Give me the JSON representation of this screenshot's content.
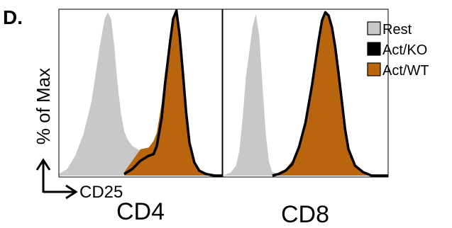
{
  "figure": {
    "panel_letter": "D.",
    "y_axis_label": "% of Max",
    "x_axis_label": "CD25",
    "colors": {
      "rest_fill": "#c8c8c8",
      "act_ko_line": "#000000",
      "act_wt_fill": "#b8650e",
      "frame": "#000000"
    },
    "legend": [
      {
        "label": "Rest",
        "swatch": "rest_fill"
      },
      {
        "label": "Act/KO",
        "swatch": "act_ko_line"
      },
      {
        "label": "Act/WT",
        "swatch": "act_wt_fill"
      }
    ]
  },
  "chart_data": [
    {
      "type": "area",
      "title": "CD4",
      "xlabel": "CD25",
      "ylabel": "% of Max",
      "xlim": [
        0,
        1
      ],
      "ylim": [
        0,
        100
      ],
      "grid": false,
      "legend_position": "right",
      "series": [
        {
          "name": "Rest",
          "style": "filled",
          "x": [
            0,
            0.05,
            0.1,
            0.15,
            0.2,
            0.25,
            0.28,
            0.3,
            0.32,
            0.34,
            0.36,
            0.38,
            0.4,
            0.42,
            0.45,
            0.5,
            0.55,
            0.6,
            0.65,
            0.7,
            0.75,
            0.8,
            0.85,
            0.9,
            0.95,
            1.0
          ],
          "y": [
            1,
            4,
            12,
            25,
            45,
            78,
            95,
            99,
            95,
            78,
            55,
            38,
            27,
            22,
            18,
            15,
            13,
            12,
            11,
            10,
            8,
            6,
            4,
            2,
            1,
            0
          ]
        },
        {
          "name": "Act/KO",
          "style": "line",
          "x": [
            0.4,
            0.45,
            0.5,
            0.55,
            0.58,
            0.6,
            0.63,
            0.65,
            0.68,
            0.7,
            0.72,
            0.74,
            0.76,
            0.78,
            0.8,
            0.83,
            0.86,
            0.9,
            0.95,
            1.0
          ],
          "y": [
            1,
            4,
            9,
            12,
            13,
            18,
            35,
            55,
            80,
            95,
            100,
            85,
            62,
            38,
            20,
            8,
            3,
            1,
            0,
            0
          ]
        },
        {
          "name": "Act/WT",
          "style": "filled",
          "x": [
            0.4,
            0.45,
            0.5,
            0.55,
            0.58,
            0.6,
            0.63,
            0.65,
            0.68,
            0.7,
            0.72,
            0.74,
            0.76,
            0.78,
            0.8,
            0.83,
            0.86,
            0.9,
            0.95,
            1.0
          ],
          "y": [
            2,
            9,
            16,
            17,
            21,
            26,
            44,
            62,
            82,
            96,
            98,
            84,
            60,
            36,
            20,
            9,
            4,
            1,
            0,
            0
          ]
        }
      ]
    },
    {
      "type": "area",
      "title": "CD8",
      "xlabel": "",
      "ylabel": "",
      "xlim": [
        0,
        1
      ],
      "ylim": [
        0,
        100
      ],
      "grid": false,
      "series": [
        {
          "name": "Rest",
          "style": "filled",
          "x": [
            0,
            0.05,
            0.08,
            0.1,
            0.12,
            0.14,
            0.16,
            0.18,
            0.2,
            0.22,
            0.24,
            0.26,
            0.28,
            0.3,
            0.35,
            0.4,
            0.5,
            0.7,
            1.0
          ],
          "y": [
            0,
            2,
            6,
            15,
            35,
            60,
            75,
            90,
            98,
            85,
            55,
            25,
            8,
            2,
            1,
            0,
            0,
            0,
            0
          ]
        },
        {
          "name": "Act/KO",
          "style": "line",
          "x": [
            0.3,
            0.34,
            0.38,
            0.42,
            0.46,
            0.5,
            0.54,
            0.58,
            0.6,
            0.62,
            0.64,
            0.66,
            0.68,
            0.7,
            0.72,
            0.74,
            0.76,
            0.8,
            0.85,
            0.9,
            1.0
          ],
          "y": [
            0,
            1,
            3,
            7,
            17,
            32,
            55,
            82,
            94,
            99,
            97,
            90,
            78,
            62,
            45,
            28,
            16,
            6,
            2,
            0,
            0
          ]
        },
        {
          "name": "Act/WT",
          "style": "filled",
          "x": [
            0.3,
            0.34,
            0.38,
            0.42,
            0.46,
            0.5,
            0.54,
            0.58,
            0.6,
            0.62,
            0.64,
            0.66,
            0.68,
            0.7,
            0.72,
            0.74,
            0.76,
            0.8,
            0.85,
            0.9,
            1.0
          ],
          "y": [
            0,
            2,
            4,
            9,
            19,
            34,
            57,
            84,
            96,
            99,
            95,
            88,
            76,
            60,
            43,
            27,
            15,
            6,
            2,
            0,
            0
          ]
        }
      ]
    }
  ]
}
